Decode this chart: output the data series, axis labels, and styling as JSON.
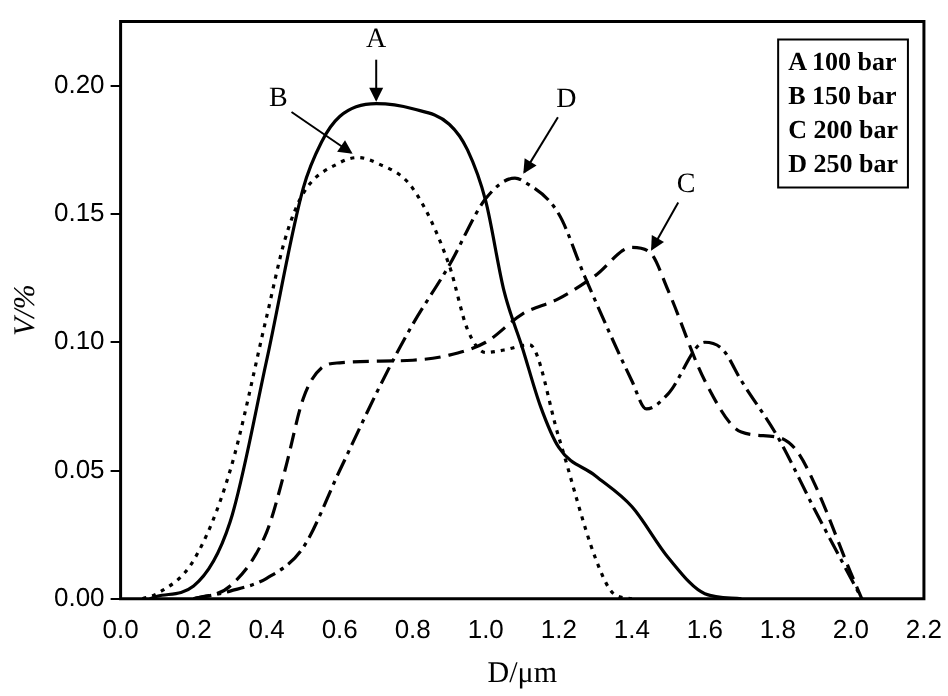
{
  "chart_data": {
    "type": "line",
    "xlabel": "D/μm",
    "ylabel": "V/%",
    "xlim": [
      0,
      2.2
    ],
    "ylim": [
      0,
      0.225
    ],
    "xticks": [
      {
        "value": 0,
        "label": "0.0"
      },
      {
        "value": 0.2,
        "label": "0.2"
      },
      {
        "value": 0.4,
        "label": "0.4"
      },
      {
        "value": 0.6,
        "label": "0.6"
      },
      {
        "value": 0.8,
        "label": "0.8"
      },
      {
        "value": 1,
        "label": "1.0"
      },
      {
        "value": 1.2,
        "label": "1.2"
      },
      {
        "value": 1.4,
        "label": "1.4"
      },
      {
        "value": 1.6,
        "label": "1.6"
      },
      {
        "value": 1.8,
        "label": "1.8"
      },
      {
        "value": 2,
        "label": "2.0"
      },
      {
        "value": 2.2,
        "label": "2.2"
      }
    ],
    "yticks": [
      {
        "value": 0,
        "label": "0.00"
      },
      {
        "value": 0.05,
        "label": "0.05"
      },
      {
        "value": 0.1,
        "label": "0.10"
      },
      {
        "value": 0.15,
        "label": "0.15"
      },
      {
        "value": 0.2,
        "label": "0.20"
      }
    ],
    "grid": false,
    "marker": "none",
    "series": [
      {
        "color": "#000000",
        "line_style": "solid",
        "x": [
          0.08,
          0.1,
          0.2,
          0.3,
          0.4,
          0.5,
          0.55,
          0.6,
          0.7,
          0.8,
          0.9,
          0.95,
          1.0,
          1.05,
          1.1,
          1.15,
          1.2,
          1.3,
          1.4,
          1.5,
          1.6,
          1.7
        ],
        "values": [
          0,
          0.001,
          0.005,
          0.03,
          0.093,
          0.16,
          0.178,
          0.188,
          0.193,
          0.191,
          0.185,
          0.175,
          0.155,
          0.12,
          0.098,
          0.075,
          0.059,
          0.048,
          0.036,
          0.016,
          0.002,
          0
        ]
      },
      {
        "color": "#000000",
        "line_style": "dotted",
        "x": [
          0.06,
          0.1,
          0.2,
          0.3,
          0.4,
          0.45,
          0.5,
          0.6,
          0.65,
          0.7,
          0.8,
          0.9,
          0.95,
          1.0,
          1.05,
          1.12,
          1.2,
          1.3,
          1.35,
          1.4
        ],
        "values": [
          0,
          0.002,
          0.015,
          0.05,
          0.11,
          0.14,
          0.158,
          0.17,
          0.172,
          0.17,
          0.16,
          0.13,
          0.105,
          0.096,
          0.097,
          0.099,
          0.063,
          0.016,
          0.002,
          0
        ]
      },
      {
        "color": "#000000",
        "line_style": "dashed",
        "x": [
          0.2,
          0.3,
          0.4,
          0.45,
          0.5,
          0.55,
          0.6,
          0.8,
          0.9,
          1.0,
          1.1,
          1.2,
          1.3,
          1.4,
          1.45,
          1.5,
          1.6,
          1.7,
          1.8,
          1.85,
          1.9,
          2.0,
          2.03
        ],
        "values": [
          0,
          0.005,
          0.026,
          0.05,
          0.078,
          0.09,
          0.092,
          0.093,
          0.095,
          0.1,
          0.111,
          0.117,
          0.126,
          0.137,
          0.135,
          0.12,
          0.085,
          0.065,
          0.063,
          0.058,
          0.045,
          0.01,
          0
        ]
      },
      {
        "color": "#000000",
        "line_style": "dashdot",
        "x": [
          0.2,
          0.3,
          0.4,
          0.5,
          0.6,
          0.7,
          0.75,
          0.8,
          0.9,
          1.0,
          1.08,
          1.1,
          1.2,
          1.27,
          1.4,
          1.44,
          1.5,
          1.6,
          1.65,
          1.7,
          1.8,
          1.9,
          2.0,
          2.03
        ],
        "values": [
          0,
          0.003,
          0.008,
          0.02,
          0.05,
          0.08,
          0.094,
          0.107,
          0.13,
          0.156,
          0.164,
          0.163,
          0.15,
          0.126,
          0.085,
          0.074,
          0.08,
          0.1,
          0.097,
          0.085,
          0.063,
          0.035,
          0.008,
          0
        ]
      }
    ],
    "annotations": [
      "A 100 bar",
      "B 150 bar",
      "C 200 bar",
      "D 250 bar",
      {
        "text": "A",
        "x": 0.7,
        "y": 0.193
      },
      {
        "text": "B",
        "x": 0.64,
        "y": 0.173
      },
      {
        "text": "D",
        "x": 1.1,
        "y": 0.165
      },
      {
        "text": "C",
        "x": 1.45,
        "y": 0.135
      }
    ]
  }
}
